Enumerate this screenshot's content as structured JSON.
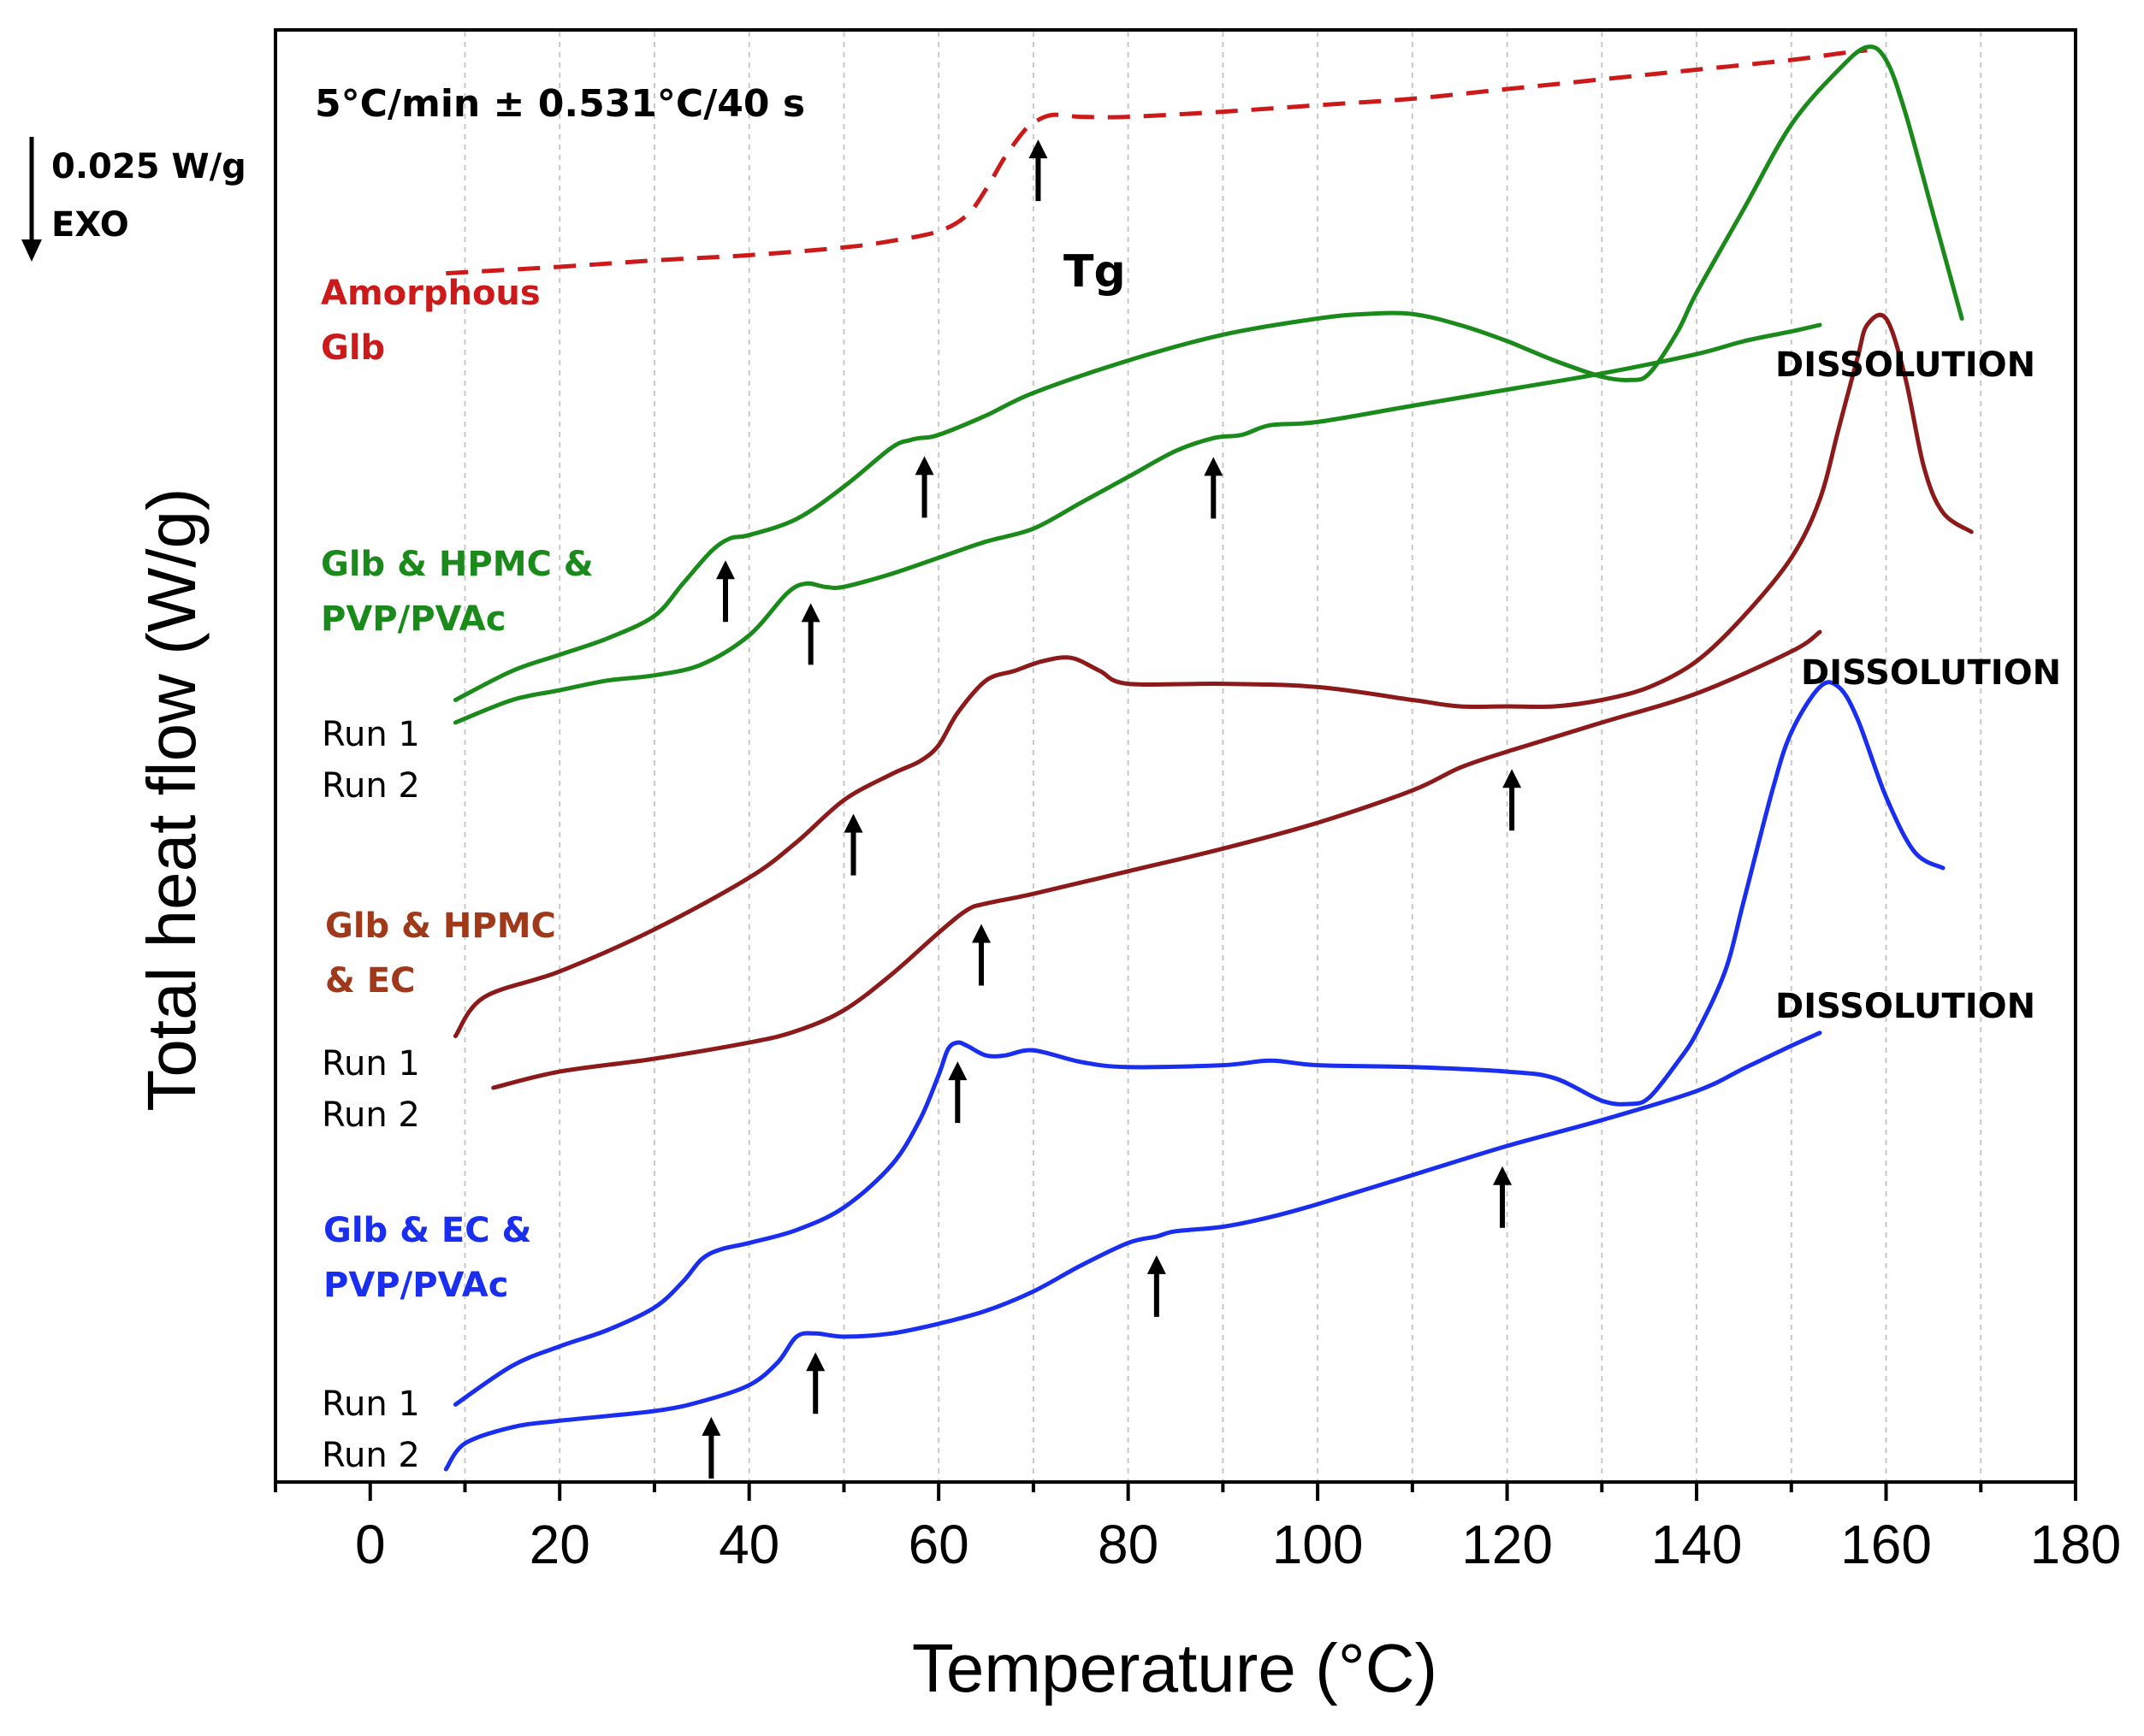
{
  "chart_data": {
    "type": "line",
    "title": "",
    "xlabel": "Temperature (°C)",
    "ylabel": "Total heat flow (W/g)",
    "xlim": [
      -10,
      180
    ],
    "xticks": [
      0,
      20,
      40,
      60,
      80,
      100,
      120,
      140,
      160,
      180
    ],
    "grid": "vertical dashed every 10 °C",
    "yticks": "none (offset curves)",
    "heating_condition": "5°C/min ± 0.531°C/40 s",
    "scale_bar": {
      "value": "0.025 W/g",
      "direction": "EXO"
    },
    "tg_label": "Tg",
    "dissolution_label": "DISSOLUTION",
    "colors": {
      "amorphous": "#cc1a1a",
      "hpmc_pvp": "#1a8a1a",
      "hpmc_ec": "#8c1a1a",
      "ec_pvp": "#1a2ef0",
      "arrow": "#000000"
    },
    "group_labels": [
      {
        "id": "amorphous",
        "lines": [
          "Amorphous",
          "Glb"
        ],
        "color": "#cc1a1a"
      },
      {
        "id": "hpmc_pvp",
        "lines": [
          "Glb & HPMC &",
          "PVP/PVAc"
        ],
        "color": "#1a8a1a"
      },
      {
        "id": "hpmc_ec",
        "lines": [
          "Glb & HPMC",
          "& EC"
        ],
        "color": "#a0391a"
      },
      {
        "id": "ec_pvp",
        "lines": [
          "Glb & EC &",
          "PVP/PVAc"
        ],
        "color": "#1a2ef0"
      }
    ],
    "run_labels": [
      "Run 1",
      "Run 2"
    ],
    "series": [
      {
        "name": "Amorphous Glb",
        "color": "#cc1a1a",
        "dashed": true,
        "x": [
          8,
          20,
          30,
          40,
          50,
          55,
          60,
          63,
          65,
          67,
          69,
          70,
          72,
          75,
          80,
          90,
          100,
          110,
          120,
          130,
          140,
          150,
          155,
          158
        ],
        "y": [
          -0.035,
          -0.034,
          -0.033,
          -0.0322,
          -0.031,
          -0.03,
          -0.0285,
          -0.026,
          -0.022,
          -0.017,
          -0.013,
          -0.0117,
          -0.0105,
          -0.0108,
          -0.0108,
          -0.01,
          -0.009,
          -0.008,
          -0.0065,
          -0.005,
          -0.0035,
          -0.002,
          -0.001,
          -0.0005
        ]
      },
      {
        "name": "Glb & HPMC & PVP/PVAc Run 1",
        "color": "#1a8a1a",
        "dashed": false,
        "x": [
          9,
          15,
          20,
          25,
          30,
          33,
          36,
          38,
          40,
          45,
          50,
          55,
          57,
          58,
          60,
          65,
          70,
          80,
          90,
          100,
          105,
          110,
          115,
          120,
          125,
          130,
          133,
          135,
          138,
          140,
          145,
          150,
          155,
          158,
          160,
          162,
          165,
          168
        ],
        "y": [
          -0.101,
          -0.0965,
          -0.094,
          -0.0915,
          -0.088,
          -0.083,
          -0.078,
          -0.076,
          -0.0755,
          -0.073,
          -0.068,
          -0.062,
          -0.0608,
          -0.0605,
          -0.06,
          -0.057,
          -0.0535,
          -0.0485,
          -0.0445,
          -0.042,
          -0.0413,
          -0.0413,
          -0.043,
          -0.0455,
          -0.0485,
          -0.051,
          -0.0515,
          -0.0505,
          -0.044,
          -0.038,
          -0.025,
          -0.012,
          -0.0035,
          0.0,
          -0.002,
          -0.01,
          -0.026,
          -0.042
        ]
      },
      {
        "name": "Glb & HPMC & PVP/PVAc Run 2",
        "color": "#1a8a1a",
        "dashed": false,
        "x": [
          9,
          15,
          20,
          25,
          30,
          35,
          40,
          44,
          46,
          48,
          50,
          55,
          60,
          65,
          70,
          75,
          80,
          85,
          89,
          92,
          95,
          100,
          110,
          120,
          130,
          140,
          145,
          150,
          153
        ],
        "y": [
          -0.1045,
          -0.101,
          -0.0995,
          -0.098,
          -0.0972,
          -0.0955,
          -0.091,
          -0.0845,
          -0.083,
          -0.0835,
          -0.0835,
          -0.0815,
          -0.079,
          -0.0765,
          -0.0745,
          -0.0705,
          -0.0665,
          -0.0625,
          -0.0605,
          -0.06,
          -0.0585,
          -0.058,
          -0.0555,
          -0.053,
          -0.0505,
          -0.0475,
          -0.0455,
          -0.044,
          -0.043
        ]
      },
      {
        "name": "Glb & HPMC & EC Run 1",
        "color": "#8c1a1a",
        "dashed": false,
        "x": [
          9,
          12,
          20,
          30,
          40,
          45,
          50,
          55,
          58,
          60,
          62,
          65,
          68,
          71,
          74,
          77,
          80,
          90,
          100,
          110,
          115,
          120,
          125,
          130,
          135,
          140,
          145,
          150,
          153,
          155,
          157,
          158,
          160,
          162,
          164,
          166,
          169
        ],
        "y": [
          -0.153,
          -0.147,
          -0.143,
          -0.1365,
          -0.1285,
          -0.123,
          -0.1165,
          -0.1125,
          -0.1105,
          -0.108,
          -0.103,
          -0.098,
          -0.0965,
          -0.095,
          -0.0945,
          -0.0965,
          -0.0985,
          -0.0985,
          -0.099,
          -0.101,
          -0.102,
          -0.102,
          -0.102,
          -0.101,
          -0.099,
          -0.095,
          -0.088,
          -0.079,
          -0.07,
          -0.059,
          -0.048,
          -0.043,
          -0.042,
          -0.051,
          -0.065,
          -0.072,
          -0.075
        ]
      },
      {
        "name": "Glb & HPMC & EC Run 2",
        "color": "#8c1a1a",
        "dashed": false,
        "x": [
          13,
          20,
          30,
          40,
          45,
          50,
          55,
          60,
          63,
          65,
          70,
          80,
          90,
          100,
          110,
          115,
          120,
          130,
          140,
          150,
          153
        ],
        "y": [
          -0.161,
          -0.1585,
          -0.1565,
          -0.154,
          -0.1522,
          -0.149,
          -0.1435,
          -0.137,
          -0.1335,
          -0.1325,
          -0.131,
          -0.1275,
          -0.124,
          -0.12,
          -0.115,
          -0.1115,
          -0.109,
          -0.1045,
          -0.1,
          -0.0935,
          -0.0905
        ]
      },
      {
        "name": "Glb & EC & PVP/PVAc Run 1",
        "color": "#1a2ef0",
        "dashed": false,
        "x": [
          9,
          15,
          20,
          25,
          30,
          33,
          35,
          37,
          40,
          45,
          50,
          55,
          58,
          60,
          61,
          62,
          63,
          65,
          67,
          70,
          75,
          80,
          90,
          95,
          100,
          110,
          120,
          125,
          130,
          133,
          135,
          138,
          140,
          143,
          145,
          148,
          150,
          153,
          155,
          157,
          160,
          163,
          166
        ],
        "y": [
          -0.21,
          -0.204,
          -0.201,
          -0.1985,
          -0.195,
          -0.191,
          -0.1875,
          -0.186,
          -0.185,
          -0.183,
          -0.1795,
          -0.173,
          -0.166,
          -0.159,
          -0.155,
          -0.154,
          -0.1545,
          -0.156,
          -0.156,
          -0.1552,
          -0.157,
          -0.1578,
          -0.1575,
          -0.1568,
          -0.1575,
          -0.1578,
          -0.1585,
          -0.1595,
          -0.163,
          -0.1635,
          -0.1625,
          -0.157,
          -0.1525,
          -0.143,
          -0.132,
          -0.115,
          -0.106,
          -0.099,
          -0.099,
          -0.104,
          -0.116,
          -0.1245,
          -0.127
        ]
      },
      {
        "name": "Glb & EC & PVP/PVAc Run 2",
        "color": "#1a2ef0",
        "dashed": false,
        "x": [
          8,
          10,
          15,
          20,
          30,
          35,
          40,
          43,
          45,
          47,
          50,
          55,
          60,
          65,
          70,
          75,
          80,
          83,
          85,
          90,
          95,
          100,
          110,
          120,
          130,
          140,
          145,
          150,
          153
        ],
        "y": [
          -0.22,
          -0.216,
          -0.2135,
          -0.2125,
          -0.211,
          -0.2095,
          -0.207,
          -0.2035,
          -0.1995,
          -0.199,
          -0.1995,
          -0.199,
          -0.1975,
          -0.1955,
          -0.1925,
          -0.1885,
          -0.185,
          -0.184,
          -0.1832,
          -0.1825,
          -0.181,
          -0.179,
          -0.1745,
          -0.17,
          -0.166,
          -0.1615,
          -0.158,
          -0.1545,
          -0.1525
        ]
      }
    ],
    "transition_arrows_x": {
      "amorphous": [
        70.5
      ],
      "hpmc_pvp_run1": [
        37.5,
        58.5
      ],
      "hpmc_pvp_run2": [
        46.5,
        89
      ],
      "hpmc_ec_run1": [
        51
      ],
      "hpmc_ec_run2": [
        64.5,
        120.5
      ],
      "ec_pvp_run1": [
        62
      ],
      "ec_pvp_run2": [
        36,
        47,
        83,
        119.5
      ]
    }
  }
}
